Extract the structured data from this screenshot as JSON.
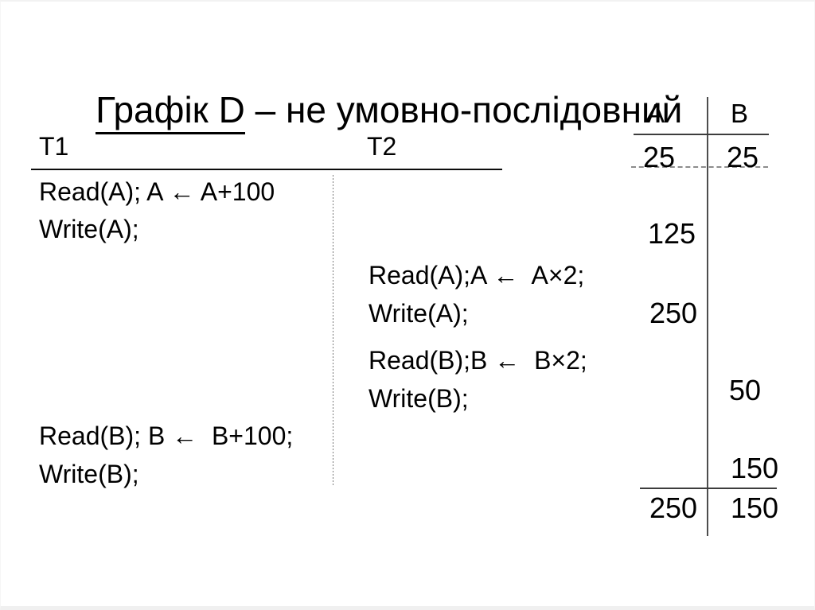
{
  "title": {
    "graph_name": "Графік D",
    "rest": " – не умовно-послідовний"
  },
  "schedule": {
    "t1_label": "T1",
    "t2_label": "T2",
    "t1_ops": [
      "Read(A); A ← A+100",
      "Write(A);",
      "Read(B); B ←  B+100;",
      "Write(B);"
    ],
    "t2_ops": [
      "Read(A);A ←  A×2;",
      "Write(A);",
      "Read(B);B ←  B×2;",
      "Write(B);"
    ]
  },
  "values": {
    "col_a": "A",
    "col_b": "B",
    "initial": {
      "a": "25",
      "b": "25"
    },
    "intermediate_a": [
      "125",
      "250"
    ],
    "intermediate_b": [
      "50",
      "150"
    ],
    "final": {
      "a": "250",
      "b": "150"
    }
  },
  "colors": {
    "text": "#000000",
    "rule": "#3d3d3d",
    "dashed_rule": "#8c8c8c",
    "background": "#ffffff"
  }
}
